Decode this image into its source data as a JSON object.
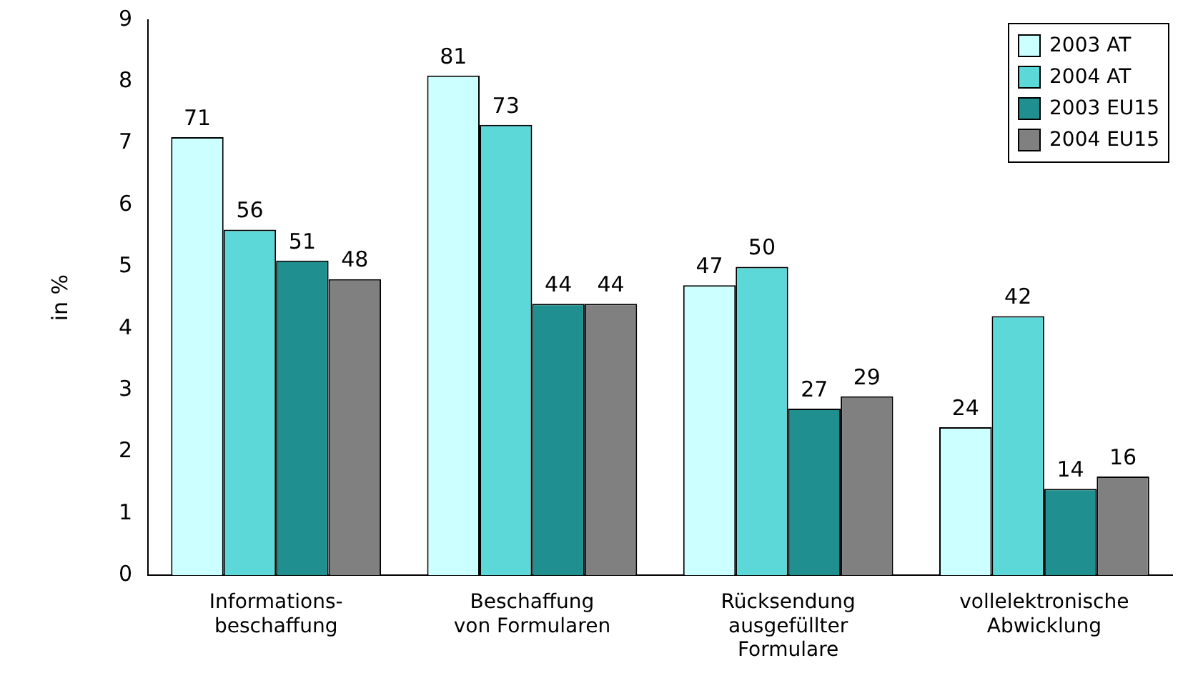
{
  "chart_data": {
    "type": "bar",
    "ylabel": "in %",
    "categories": [
      "Informations-\nbeschaffung",
      "Beschaffung\nvon Formularen",
      "Rücksendung\nausgefüllter\nFormulare",
      "vollelektronische\nAbwicklung"
    ],
    "series": [
      {
        "name": "2003 AT",
        "color": "#ccffff",
        "values": [
          7.1,
          8.1,
          4.7,
          2.4
        ]
      },
      {
        "name": "2004 AT",
        "color": "#5dd8d8",
        "values": [
          5.6,
          7.3,
          5.0,
          4.2
        ]
      },
      {
        "name": "2003 EU15",
        "color": "#1f8f8f",
        "values": [
          5.1,
          4.4,
          2.7,
          1.4
        ]
      },
      {
        "name": "2004 EU15",
        "color": "#808080",
        "values": [
          4.8,
          4.4,
          2.9,
          1.6
        ]
      }
    ],
    "annotations": [
      "71",
      "56",
      "51",
      "48",
      "81",
      "73",
      "44",
      "44",
      "47",
      "50",
      "27",
      "29",
      "24",
      "42",
      "14",
      "16"
    ],
    "ylim": [
      0,
      9
    ],
    "yticks": [
      0,
      1,
      2,
      3,
      4,
      5,
      6,
      7,
      8,
      9
    ],
    "grid": false,
    "legend": "top right"
  }
}
